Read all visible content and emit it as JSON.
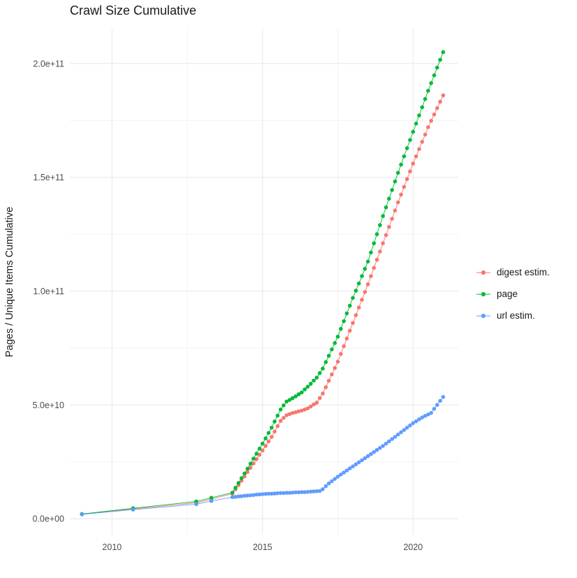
{
  "chart": {
    "title": "Crawl Size Cumulative",
    "ylabel": "Pages / Unique Items Cumulative",
    "xlabel": ""
  },
  "chart_data": {
    "type": "scatter",
    "title": "Crawl Size Cumulative",
    "xlabel": "",
    "ylabel": "Pages / Unique Items Cumulative",
    "x_unit": "year",
    "y_unit_multiplier": 1000000000.0,
    "grid": "on",
    "legend_position": "right",
    "xlim": [
      2008.6,
      2021.5
    ],
    "ylim_e9": [
      -7,
      215
    ],
    "x_ticks": [
      {
        "value": 2010,
        "label": "2010"
      },
      {
        "value": 2015,
        "label": "2015"
      },
      {
        "value": 2020,
        "label": "2020"
      }
    ],
    "y_ticks": [
      {
        "value": 0,
        "label": "0.0e+00"
      },
      {
        "value": 50,
        "label": "5.0e+10"
      },
      {
        "value": 100,
        "label": "1.0e+11"
      },
      {
        "value": 150,
        "label": "1.5e+11"
      },
      {
        "value": 200,
        "label": "2.0e+11"
      }
    ],
    "x_minor": [
      2012.5,
      2017.5
    ],
    "y_minor": [
      25,
      75,
      125,
      175
    ],
    "series": [
      {
        "name": "digest estim.",
        "color": "#F8766D",
        "points": [
          [
            2009.0,
            2.0
          ],
          [
            2010.7,
            4.3
          ],
          [
            2012.8,
            7.0
          ],
          [
            2013.3,
            8.6
          ],
          [
            2014.0,
            11
          ],
          [
            2014.1,
            12.9
          ],
          [
            2014.2,
            14.8
          ],
          [
            2014.3,
            16.7
          ],
          [
            2014.4,
            18.6
          ],
          [
            2014.5,
            20.5
          ],
          [
            2014.6,
            22.4
          ],
          [
            2014.7,
            24.3
          ],
          [
            2014.8,
            26.2
          ],
          [
            2014.9,
            28.1
          ],
          [
            2015.0,
            30
          ],
          [
            2015.1,
            32
          ],
          [
            2015.2,
            34
          ],
          [
            2015.3,
            36
          ],
          [
            2015.4,
            38.3
          ],
          [
            2015.5,
            40.7
          ],
          [
            2015.6,
            43
          ],
          [
            2015.7,
            44.3
          ],
          [
            2015.8,
            45.5
          ],
          [
            2015.9,
            46
          ],
          [
            2016.0,
            46.5
          ],
          [
            2016.1,
            46.8
          ],
          [
            2016.2,
            47.2
          ],
          [
            2016.3,
            47.5
          ],
          [
            2016.4,
            48
          ],
          [
            2016.5,
            48.5
          ],
          [
            2016.6,
            49.3
          ],
          [
            2016.7,
            50.2
          ],
          [
            2016.8,
            51
          ],
          [
            2016.9,
            53
          ],
          [
            2017.0,
            55
          ],
          [
            2017.1,
            57.8
          ],
          [
            2017.2,
            60.6
          ],
          [
            2017.3,
            63.4
          ],
          [
            2017.4,
            66.2
          ],
          [
            2017.5,
            69
          ],
          [
            2017.6,
            72.4
          ],
          [
            2017.7,
            75.8
          ],
          [
            2017.8,
            79.2
          ],
          [
            2017.9,
            82.6
          ],
          [
            2018.0,
            86
          ],
          [
            2018.1,
            89.4
          ],
          [
            2018.2,
            92.8
          ],
          [
            2018.3,
            96.2
          ],
          [
            2018.4,
            99.6
          ],
          [
            2018.5,
            103
          ],
          [
            2018.6,
            106.6
          ],
          [
            2018.7,
            110.2
          ],
          [
            2018.8,
            113.8
          ],
          [
            2018.9,
            117.4
          ],
          [
            2019.0,
            121
          ],
          [
            2019.1,
            124.6
          ],
          [
            2019.2,
            128.2
          ],
          [
            2019.3,
            131.8
          ],
          [
            2019.4,
            135.4
          ],
          [
            2019.5,
            139
          ],
          [
            2019.6,
            142.4
          ],
          [
            2019.7,
            145.8
          ],
          [
            2019.8,
            149.2
          ],
          [
            2019.9,
            152.6
          ],
          [
            2020.0,
            156
          ],
          [
            2020.1,
            159.2
          ],
          [
            2020.2,
            162.4
          ],
          [
            2020.3,
            165.6
          ],
          [
            2020.4,
            168.8
          ],
          [
            2020.5,
            172
          ],
          [
            2020.6,
            174.8
          ],
          [
            2020.7,
            177.6
          ],
          [
            2020.8,
            180.4
          ],
          [
            2020.9,
            183.2
          ],
          [
            2021.0,
            186
          ]
        ]
      },
      {
        "name": "page",
        "color": "#00BA38",
        "points": [
          [
            2009.0,
            2.1
          ],
          [
            2010.7,
            4.6
          ],
          [
            2012.8,
            7.6
          ],
          [
            2013.3,
            9.2
          ],
          [
            2014.0,
            11.5
          ],
          [
            2014.1,
            13.6
          ],
          [
            2014.2,
            15.7
          ],
          [
            2014.3,
            17.8
          ],
          [
            2014.4,
            19.9
          ],
          [
            2014.5,
            22
          ],
          [
            2014.6,
            24.2
          ],
          [
            2014.7,
            26.4
          ],
          [
            2014.8,
            28.6
          ],
          [
            2014.9,
            30.8
          ],
          [
            2015.0,
            33
          ],
          [
            2015.1,
            35.3
          ],
          [
            2015.2,
            37.7
          ],
          [
            2015.3,
            40
          ],
          [
            2015.4,
            42.7
          ],
          [
            2015.5,
            45.3
          ],
          [
            2015.6,
            48
          ],
          [
            2015.7,
            49.8
          ],
          [
            2015.8,
            51.5
          ],
          [
            2015.9,
            52.2
          ],
          [
            2016.0,
            53
          ],
          [
            2016.1,
            53.8
          ],
          [
            2016.2,
            54.7
          ],
          [
            2016.3,
            55.5
          ],
          [
            2016.4,
            56.8
          ],
          [
            2016.5,
            58
          ],
          [
            2016.6,
            59.3
          ],
          [
            2016.7,
            60.7
          ],
          [
            2016.8,
            62
          ],
          [
            2016.9,
            64
          ],
          [
            2017.0,
            66
          ],
          [
            2017.1,
            68.8
          ],
          [
            2017.2,
            71.6
          ],
          [
            2017.3,
            74.4
          ],
          [
            2017.4,
            77.2
          ],
          [
            2017.5,
            80
          ],
          [
            2017.6,
            83.4
          ],
          [
            2017.7,
            86.8
          ],
          [
            2017.8,
            90.2
          ],
          [
            2017.9,
            93.6
          ],
          [
            2018.0,
            97
          ],
          [
            2018.1,
            100.2
          ],
          [
            2018.2,
            103.4
          ],
          [
            2018.3,
            106.6
          ],
          [
            2018.4,
            109.8
          ],
          [
            2018.5,
            113
          ],
          [
            2018.6,
            117
          ],
          [
            2018.7,
            121
          ],
          [
            2018.8,
            125
          ],
          [
            2018.9,
            129
          ],
          [
            2019.0,
            133
          ],
          [
            2019.1,
            136.8
          ],
          [
            2019.2,
            140.6
          ],
          [
            2019.3,
            144.4
          ],
          [
            2019.4,
            148.2
          ],
          [
            2019.5,
            152
          ],
          [
            2019.6,
            155.6
          ],
          [
            2019.7,
            159.2
          ],
          [
            2019.8,
            162.8
          ],
          [
            2019.9,
            166.4
          ],
          [
            2020.0,
            170
          ],
          [
            2020.1,
            173.6
          ],
          [
            2020.2,
            177.2
          ],
          [
            2020.3,
            180.8
          ],
          [
            2020.4,
            184.4
          ],
          [
            2020.5,
            188
          ],
          [
            2020.6,
            191.4
          ],
          [
            2020.7,
            194.8
          ],
          [
            2020.8,
            198.2
          ],
          [
            2020.9,
            201.6
          ],
          [
            2021.0,
            205
          ]
        ]
      },
      {
        "name": "url estim.",
        "color": "#619CFF",
        "points": [
          [
            2009.0,
            1.9
          ],
          [
            2010.7,
            4.0
          ],
          [
            2012.8,
            6.4
          ],
          [
            2013.3,
            7.8
          ],
          [
            2014.0,
            9.5
          ],
          [
            2014.1,
            9.6
          ],
          [
            2014.2,
            9.8
          ],
          [
            2014.3,
            9.9
          ],
          [
            2014.4,
            10.1
          ],
          [
            2014.5,
            10.2
          ],
          [
            2014.6,
            10.3
          ],
          [
            2014.7,
            10.4
          ],
          [
            2014.8,
            10.6
          ],
          [
            2014.9,
            10.7
          ],
          [
            2015.0,
            10.8
          ],
          [
            2015.1,
            10.9
          ],
          [
            2015.2,
            11.0
          ],
          [
            2015.3,
            11.0
          ],
          [
            2015.4,
            11.1
          ],
          [
            2015.5,
            11.2
          ],
          [
            2015.6,
            11.3
          ],
          [
            2015.7,
            11.3
          ],
          [
            2015.8,
            11.4
          ],
          [
            2015.9,
            11.4
          ],
          [
            2016.0,
            11.5
          ],
          [
            2016.1,
            11.6
          ],
          [
            2016.2,
            11.6
          ],
          [
            2016.3,
            11.7
          ],
          [
            2016.4,
            11.7
          ],
          [
            2016.5,
            11.8
          ],
          [
            2016.6,
            11.9
          ],
          [
            2016.7,
            12.0
          ],
          [
            2016.8,
            12.1
          ],
          [
            2016.9,
            12.2
          ],
          [
            2017.0,
            13
          ],
          [
            2017.1,
            14.3
          ],
          [
            2017.2,
            15.5
          ],
          [
            2017.3,
            16.5
          ],
          [
            2017.4,
            17.5
          ],
          [
            2017.5,
            18.5
          ],
          [
            2017.6,
            19.4
          ],
          [
            2017.7,
            20.3
          ],
          [
            2017.8,
            21.2
          ],
          [
            2017.9,
            22.1
          ],
          [
            2018.0,
            23
          ],
          [
            2018.1,
            23.9
          ],
          [
            2018.2,
            24.8
          ],
          [
            2018.3,
            25.7
          ],
          [
            2018.4,
            26.6
          ],
          [
            2018.5,
            27.5
          ],
          [
            2018.6,
            28.4
          ],
          [
            2018.7,
            29.3
          ],
          [
            2018.8,
            30.2
          ],
          [
            2018.9,
            31.1
          ],
          [
            2019.0,
            32
          ],
          [
            2019.1,
            33
          ],
          [
            2019.2,
            34
          ],
          [
            2019.3,
            35
          ],
          [
            2019.4,
            36
          ],
          [
            2019.5,
            37
          ],
          [
            2019.6,
            38
          ],
          [
            2019.7,
            39
          ],
          [
            2019.8,
            40
          ],
          [
            2019.9,
            41
          ],
          [
            2020.0,
            42
          ],
          [
            2020.1,
            42.8
          ],
          [
            2020.2,
            43.7
          ],
          [
            2020.3,
            44.5
          ],
          [
            2020.4,
            45.2
          ],
          [
            2020.5,
            45.8
          ],
          [
            2020.6,
            46.5
          ],
          [
            2020.7,
            48.3
          ],
          [
            2020.8,
            50
          ],
          [
            2020.9,
            51.8
          ],
          [
            2021.0,
            53.5
          ]
        ]
      }
    ]
  }
}
